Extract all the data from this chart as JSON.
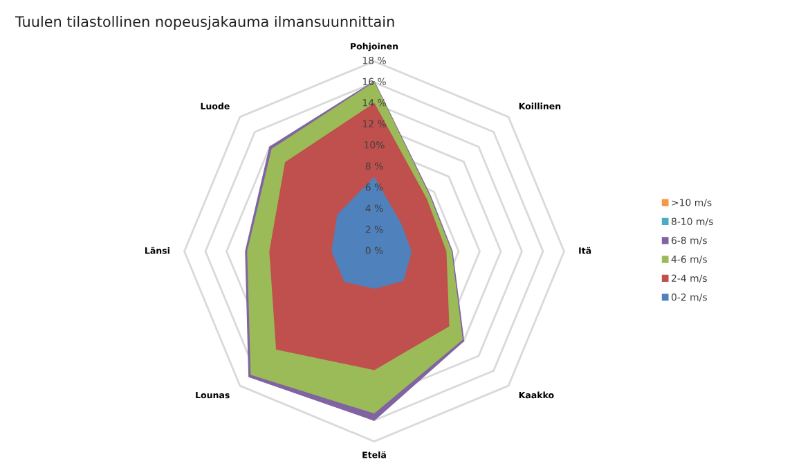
{
  "chart_data": {
    "type": "radar",
    "title": "Tuulen tilastollinen nopeusjakauma ilmansuunnittain",
    "categories": [
      "Pohjoinen",
      "Koillinen",
      "Itä",
      "Kaakko",
      "Etelä",
      "Lounas",
      "Länsi",
      "Luode"
    ],
    "ylim": [
      0,
      18
    ],
    "yticks": [
      {
        "value": 0,
        "label": "0 %"
      },
      {
        "value": 2,
        "label": "2 %"
      },
      {
        "value": 4,
        "label": "4 %"
      },
      {
        "value": 6,
        "label": "6 %"
      },
      {
        "value": 8,
        "label": "8 %"
      },
      {
        "value": 10,
        "label": "10%"
      },
      {
        "value": 12,
        "label": "12 %"
      },
      {
        "value": 14,
        "label": "14 %"
      },
      {
        "value": 16,
        "label": "16 %"
      },
      {
        "value": 18,
        "label": "18 %"
      }
    ],
    "grid": true,
    "legend": "right",
    "series": [
      {
        "name": "6-8 m/s",
        "color": "#8064a2",
        "values": [
          16.1,
          7.5,
          7.4,
          12.0,
          16.0,
          16.8,
          12.2,
          14.0
        ]
      },
      {
        "name": "4-6 m/s",
        "color": "#9bbb59",
        "values": [
          16.0,
          7.4,
          7.3,
          11.8,
          15.3,
          16.5,
          12.0,
          13.7
        ]
      },
      {
        "name": "2-4 m/s",
        "color": "#c0504d",
        "values": [
          14.0,
          7.0,
          6.8,
          10.0,
          11.2,
          13.1,
          9.9,
          11.9
        ]
      },
      {
        "name": "0-2 m/s",
        "color": "#4f81bd",
        "values": [
          7.0,
          3.6,
          3.5,
          3.9,
          3.5,
          4.0,
          4.0,
          4.9
        ]
      },
      {
        "name": "8-10 m/s",
        "color": "#4bacc6",
        "values": [
          null,
          null,
          null,
          null,
          null,
          null,
          null,
          null
        ]
      },
      {
        "name": ">10 m/s",
        "color": "#f79646",
        "values": [
          null,
          null,
          null,
          null,
          null,
          null,
          null,
          null
        ]
      }
    ]
  }
}
